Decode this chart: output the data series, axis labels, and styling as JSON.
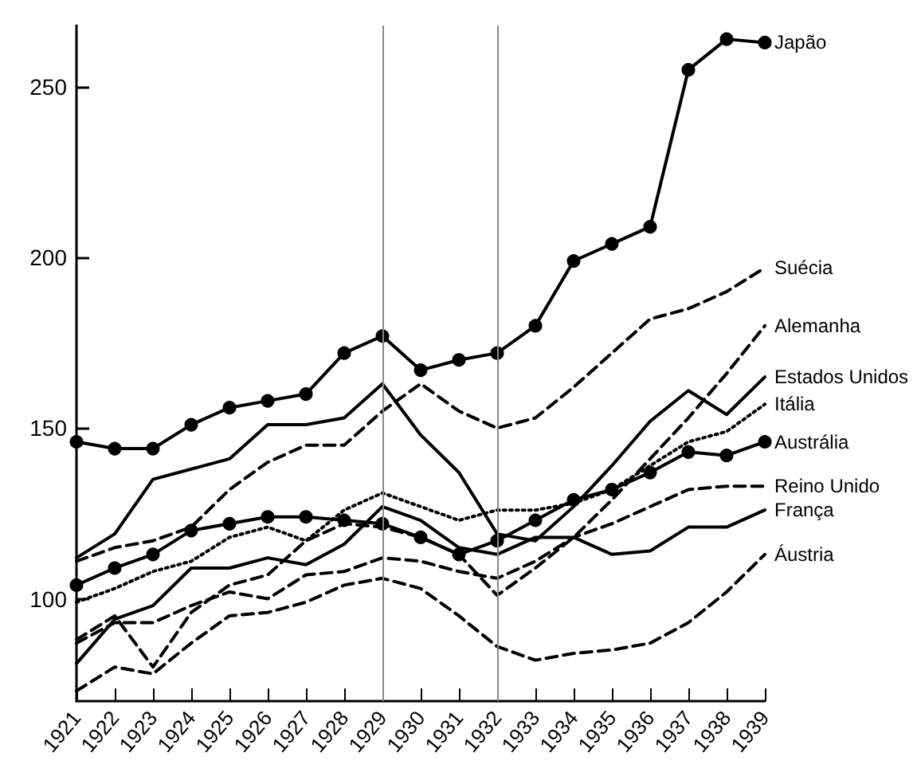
{
  "chart_data": {
    "type": "line",
    "categories": [
      "1921",
      "1922",
      "1923",
      "1924",
      "1925",
      "1926",
      "1927",
      "1928",
      "1929",
      "1930",
      "1931",
      "1932",
      "1933",
      "1934",
      "1935",
      "1936",
      "1937",
      "1938",
      "1939"
    ],
    "ylim": [
      70,
      268
    ],
    "yticks": [
      100,
      150,
      200,
      250
    ],
    "grid": false,
    "ref_lines": [
      {
        "axis": "x",
        "value": "1929",
        "color": "#888888"
      },
      {
        "axis": "x",
        "value": "1932",
        "color": "#888888"
      }
    ],
    "series": [
      {
        "name": "Japão",
        "color": "#000000",
        "marker": "circle",
        "line_style": "solid",
        "values": [
          146,
          144,
          144,
          151,
          156,
          158,
          160,
          172,
          177,
          167,
          170,
          172,
          180,
          199,
          204,
          209,
          255,
          264,
          263
        ]
      },
      {
        "name": "Suécia",
        "color": "#000000",
        "marker": "none",
        "line_style": "dashed",
        "values": [
          111,
          115,
          117,
          121,
          132,
          140,
          145,
          145,
          155,
          163,
          155,
          150,
          153,
          162,
          172,
          182,
          185,
          190,
          197
        ]
      },
      {
        "name": "Alemanha",
        "color": "#000000",
        "marker": "none",
        "line_style": "dashed",
        "values": [
          88,
          95,
          80,
          96,
          104,
          107,
          117,
          122,
          121,
          118,
          113,
          101,
          109,
          118,
          129,
          141,
          153,
          166,
          180
        ]
      },
      {
        "name": "Estados Unidos",
        "color": "#000000",
        "marker": "none",
        "line_style": "solid",
        "values": [
          112,
          119,
          135,
          138,
          141,
          151,
          151,
          153,
          163,
          148,
          137,
          119,
          117,
          127,
          139,
          152,
          161,
          154,
          165
        ]
      },
      {
        "name": "Itália",
        "color": "#000000",
        "marker": "none",
        "line_style": "dotted",
        "values": [
          99,
          103,
          108,
          111,
          118,
          121,
          117,
          126,
          131,
          127,
          123,
          126,
          126,
          128,
          132,
          139,
          146,
          149,
          157
        ]
      },
      {
        "name": "Austrália",
        "color": "#000000",
        "marker": "circle",
        "line_style": "solid",
        "values": [
          104,
          109,
          113,
          120,
          122,
          124,
          124,
          123,
          122,
          118,
          113,
          117,
          123,
          129,
          132,
          137,
          143,
          142,
          146
        ]
      },
      {
        "name": "França",
        "color": "#000000",
        "marker": "none",
        "line_style": "solid",
        "values": [
          81,
          94,
          98,
          109,
          109,
          112,
          110,
          116,
          127,
          123,
          115,
          113,
          118,
          118,
          113,
          114,
          121,
          121,
          126
        ]
      },
      {
        "name": "Reino Unido",
        "color": "#000000",
        "marker": "none",
        "line_style": "dashed",
        "values": [
          87,
          93,
          93,
          98,
          102,
          100,
          107,
          108,
          112,
          111,
          108,
          106,
          111,
          118,
          122,
          127,
          132,
          133,
          133
        ]
      },
      {
        "name": "Áustria",
        "color": "#000000",
        "marker": "none",
        "line_style": "dashed",
        "values": [
          73,
          80,
          78,
          87,
          95,
          96,
          99,
          104,
          106,
          103,
          95,
          86,
          82,
          84,
          85,
          87,
          93,
          102,
          113
        ]
      }
    ]
  }
}
